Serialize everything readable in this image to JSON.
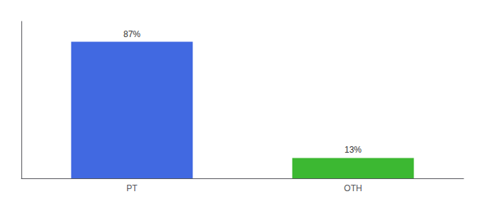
{
  "chart_data": {
    "type": "bar",
    "categories": [
      "PT",
      "OTH"
    ],
    "values": [
      87,
      13
    ],
    "value_labels": [
      "87%",
      "13%"
    ],
    "colors": [
      "#4169e1",
      "#3cb832"
    ],
    "ylim": [
      0,
      100
    ],
    "tick_labels": "x",
    "data_labels": true,
    "grid": false
  }
}
